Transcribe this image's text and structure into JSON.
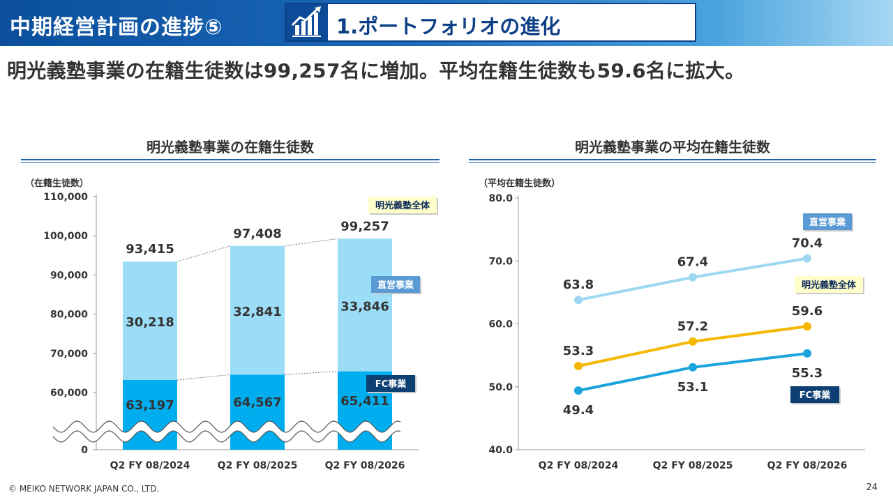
{
  "header": {
    "title": "中期経営計画の進捗⑤",
    "subtitle": "1.ポートフォリオの進化",
    "icon": "rising-bar-chart-icon",
    "gradient_colors": [
      "#0b4f9c",
      "#a6d7f3"
    ]
  },
  "headline": "明光義塾事業の在籍生徒数は99,257名に増加。平均在籍生徒数も59.6名に拡大。",
  "footer": {
    "copyright": "© MEIKO NETWORK JAPAN CO., LTD.",
    "page": "24"
  },
  "chart_data": [
    {
      "type": "bar",
      "stacked": true,
      "title": "明光義塾事業の在籍生徒数",
      "ylabel": "（在籍生徒数）",
      "categories": [
        "Q2 FY 08/2024",
        "Q2 FY 08/2025",
        "Q2 FY 08/2026"
      ],
      "series": [
        {
          "name": "FC事業",
          "values": [
            63197,
            64567,
            65411
          ],
          "labels": [
            "63,197",
            "64,567",
            "65,411"
          ],
          "color": "#00aeef"
        },
        {
          "name": "直営事業",
          "values": [
            30218,
            32841,
            33846
          ],
          "labels": [
            "30,218",
            "32,841",
            "33,846"
          ],
          "color": "#9bdcf6"
        }
      ],
      "totals": {
        "name": "明光義塾全体",
        "values": [
          93415,
          97408,
          99257
        ],
        "labels": [
          "93,415",
          "97,408",
          "99,257"
        ]
      },
      "legend": [
        {
          "name": "明光義塾全体",
          "bg": "#ffffcc",
          "fg": "#0d2a5a"
        },
        {
          "name": "直営事業",
          "bg": "#5b9bd5",
          "fg": "#ffffff"
        },
        {
          "name": "FC事業",
          "bg": "#0d3f73",
          "fg": "#ffffff"
        }
      ],
      "yticks": [
        {
          "value": 0,
          "label": "0"
        },
        {
          "value": 60000,
          "label": "60,000"
        },
        {
          "value": 70000,
          "label": "70,000"
        },
        {
          "value": 80000,
          "label": "80,000"
        },
        {
          "value": 90000,
          "label": "90,000"
        },
        {
          "value": 100000,
          "label": "100,000"
        },
        {
          "value": 110000,
          "label": "110,000"
        }
      ],
      "axis_break": [
        0,
        55000
      ],
      "ylim": [
        55000,
        110000
      ],
      "grid": false
    },
    {
      "type": "line",
      "title": "明光義塾事業の平均在籍生徒数",
      "ylabel": "（平均在籍生徒数）",
      "categories": [
        "Q2 FY 08/2024",
        "Q2 FY 08/2025",
        "Q2 FY 08/2026"
      ],
      "series": [
        {
          "name": "直営事業",
          "values": [
            63.8,
            67.4,
            70.4
          ],
          "labels": [
            "63.8",
            "67.4",
            "70.4"
          ],
          "color": "#9dd8f2",
          "label_pos": "above",
          "legend_bg": "#5b9bd5",
          "legend_fg": "#ffffff"
        },
        {
          "name": "明光義塾全体",
          "values": [
            53.3,
            57.2,
            59.6
          ],
          "labels": [
            "53.3",
            "57.2",
            "59.6"
          ],
          "color": "#f5b800",
          "label_pos": "above",
          "legend_bg": "#ffffcc",
          "legend_fg": "#0d2a5a"
        },
        {
          "name": "FC事業",
          "values": [
            49.4,
            53.1,
            55.3
          ],
          "labels": [
            "49.4",
            "53.1",
            "55.3"
          ],
          "color": "#1aa3dc",
          "label_pos": "below",
          "legend_bg": "#0d3f73",
          "legend_fg": "#ffffff"
        }
      ],
      "yticks": [
        {
          "value": 40,
          "label": "40.0"
        },
        {
          "value": 50,
          "label": "50.0"
        },
        {
          "value": 60,
          "label": "60.0"
        },
        {
          "value": 70,
          "label": "70.0"
        },
        {
          "value": 80,
          "label": "80.0"
        }
      ],
      "ylim": [
        40,
        80
      ],
      "grid": false
    }
  ]
}
